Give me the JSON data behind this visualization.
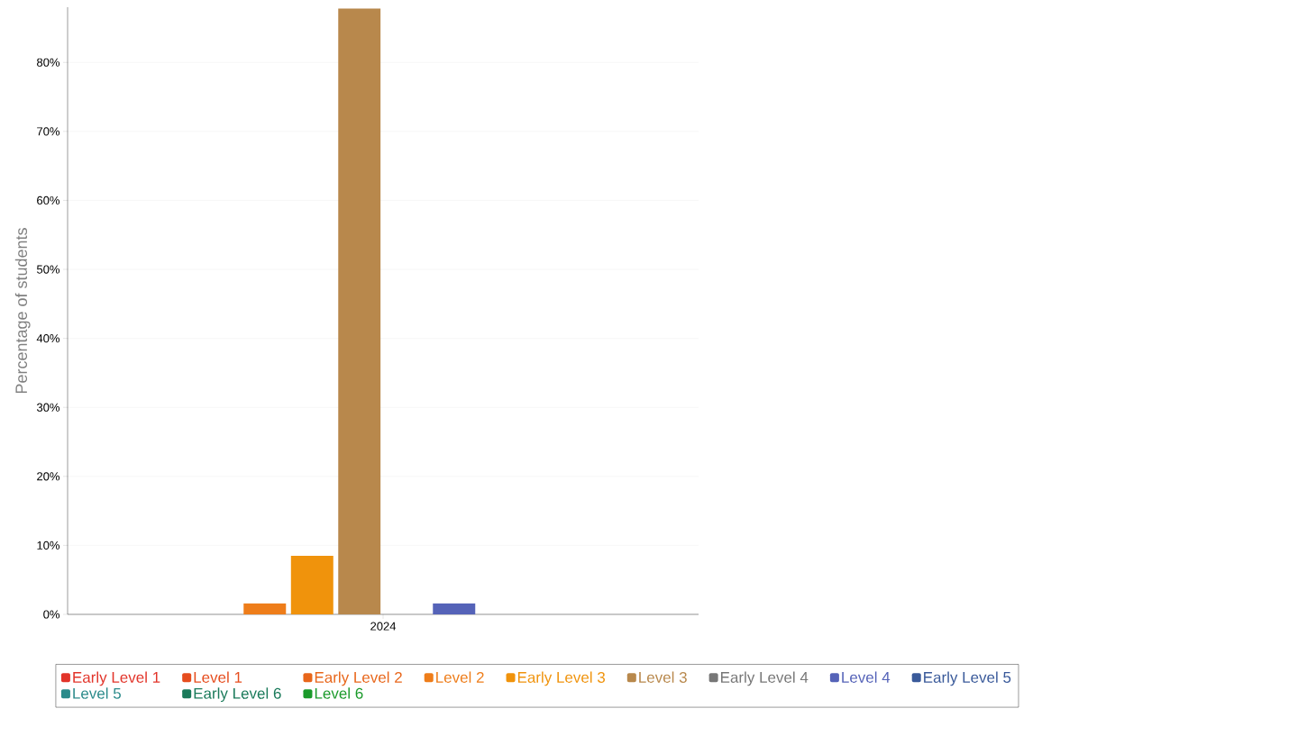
{
  "chart_data": {
    "type": "bar",
    "ylabel": "Percentage of students",
    "categories": [
      "2024"
    ],
    "series": [
      {
        "name": "Early Level 1",
        "color": "#e2342a",
        "values": [
          0
        ]
      },
      {
        "name": "Level 1",
        "color": "#e64d1e",
        "values": [
          0
        ]
      },
      {
        "name": "Early Level 2",
        "color": "#e8661a",
        "values": [
          0
        ]
      },
      {
        "name": "Level 2",
        "color": "#ee7d1a",
        "values": [
          1.6
        ]
      },
      {
        "name": "Early Level 3",
        "color": "#f0930c",
        "values": [
          8.5
        ]
      },
      {
        "name": "Level 3",
        "color": "#b8884c",
        "values": [
          87.8
        ]
      },
      {
        "name": "Early Level 4",
        "color": "#777777",
        "values": [
          0
        ]
      },
      {
        "name": "Level 4",
        "color": "#5563b8",
        "values": [
          1.6
        ]
      },
      {
        "name": "Early Level 5",
        "color": "#3a5a9a",
        "values": [
          0
        ]
      },
      {
        "name": "Level 5",
        "color": "#2a8a8a",
        "values": [
          0
        ]
      },
      {
        "name": "Early Level 6",
        "color": "#1a7a5a",
        "values": [
          0
        ]
      },
      {
        "name": "Level 6",
        "color": "#1a9a2a",
        "values": [
          0
        ]
      }
    ],
    "ylim": [
      0,
      88
    ],
    "yticks": [
      {
        "value": 0,
        "label": "0%"
      },
      {
        "value": 10,
        "label": "10%"
      },
      {
        "value": 20,
        "label": "20%"
      },
      {
        "value": 30,
        "label": "30%"
      },
      {
        "value": 40,
        "label": "40%"
      },
      {
        "value": 50,
        "label": "50%"
      },
      {
        "value": 60,
        "label": "60%"
      },
      {
        "value": 70,
        "label": "70%"
      },
      {
        "value": 80,
        "label": "80%"
      }
    ],
    "grid": "y",
    "legend": "bottom"
  }
}
